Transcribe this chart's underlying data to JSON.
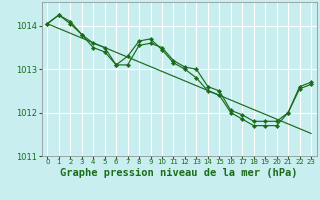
{
  "title": "Graphe pression niveau de la mer (hPa)",
  "bg_color": "#c8eef0",
  "grid_color": "#ffffff",
  "line_color": "#1a6b1a",
  "hours": [
    0,
    1,
    2,
    3,
    4,
    5,
    6,
    7,
    8,
    9,
    10,
    11,
    12,
    13,
    14,
    15,
    16,
    17,
    18,
    19,
    20,
    21,
    22,
    23
  ],
  "line_main": [
    1014.05,
    1014.25,
    1014.1,
    1013.8,
    1013.6,
    1013.5,
    1013.1,
    1013.1,
    1013.55,
    1013.6,
    1013.5,
    1013.2,
    1013.05,
    1013.0,
    1012.6,
    1012.5,
    1012.05,
    1011.95,
    1011.8,
    1011.8,
    1011.8,
    1012.0,
    1012.55,
    1012.65
  ],
  "line_secondary": [
    1014.05,
    1014.25,
    1014.05,
    1013.8,
    1013.5,
    1013.4,
    1013.1,
    1013.3,
    1013.65,
    1013.7,
    1013.45,
    1013.15,
    1013.0,
    1012.8,
    1012.5,
    1012.4,
    1012.0,
    1011.85,
    1011.7,
    1011.7,
    1011.7,
    1012.0,
    1012.6,
    1012.7
  ],
  "line_straight": [
    1014.05,
    1013.94,
    1013.83,
    1013.72,
    1013.61,
    1013.5,
    1013.39,
    1013.28,
    1013.17,
    1013.06,
    1012.95,
    1012.84,
    1012.73,
    1012.62,
    1012.51,
    1012.4,
    1012.29,
    1012.18,
    1012.07,
    1011.96,
    1011.85,
    1011.74,
    1011.63,
    1011.52
  ],
  "ylim_min": 1011.0,
  "ylim_max": 1014.55,
  "yticks": [
    1011,
    1012,
    1013,
    1014
  ],
  "xtick_labels": [
    "0",
    "1",
    "2",
    "3",
    "4",
    "5",
    "6",
    "7",
    "8",
    "9",
    "10",
    "11",
    "12",
    "13",
    "14",
    "15",
    "16",
    "17",
    "18",
    "19",
    "20",
    "21",
    "22",
    "23"
  ]
}
